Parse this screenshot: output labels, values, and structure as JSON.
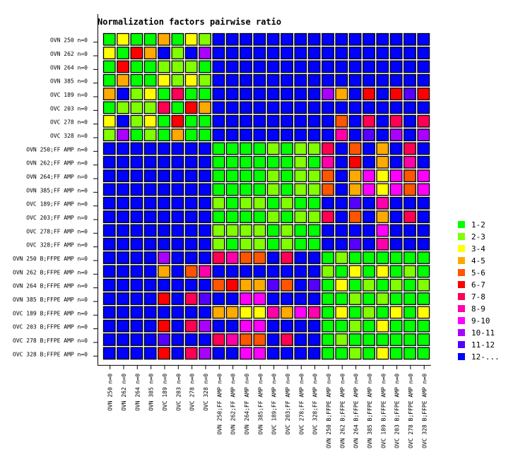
{
  "chart_data": {
    "type": "heatmap",
    "title": "Normalization factors pairwise ratio",
    "labels": [
      "OVN 250 n=0",
      "OVN 262 n=0",
      "OVN 264 n=0",
      "OVN 385 n=0",
      "OVC 189 n=0",
      "OVC 203 n=0",
      "OVC 278 n=0",
      "OVC 328 n=0",
      "OVN 250;FF AMP n=0",
      "OVN 262;FF AMP n=0",
      "OVN 264;FF AMP n=0",
      "OVN 385;FF AMP n=0",
      "OVC 189;FF AMP n=0",
      "OVC 203;FF AMP n=0",
      "OVC 278;FF AMP n=0",
      "OVC 328;FF AMP n=0",
      "OVN 250 B;FFPE AMP n=0",
      "OVN 262 B;FFPE AMP n=0",
      "OVN 264 B;FFPE AMP n=0",
      "OVN 385 B;FFPE AMP n=0",
      "OVC 189 B;FFPE AMP n=0",
      "OVC 203 B;FFPE AMP n=0",
      "OVC 278 B;FFPE AMP n=0",
      "OVC 328 B;FFPE AMP n=0"
    ],
    "legend": {
      "placement": "right",
      "bins": [
        {
          "label": "1-2",
          "color": "#00ff00"
        },
        {
          "label": "2-3",
          "color": "#80ff00"
        },
        {
          "label": "3-4",
          "color": "#ffff00"
        },
        {
          "label": "4-5",
          "color": "#ffaa00"
        },
        {
          "label": "5-6",
          "color": "#ff5500"
        },
        {
          "label": "6-7",
          "color": "#ff0000"
        },
        {
          "label": "7-8",
          "color": "#ff0055"
        },
        {
          "label": "8-9",
          "color": "#ff00aa"
        },
        {
          "label": "9-10",
          "color": "#ff00ff"
        },
        {
          "label": "10-11",
          "color": "#aa00ff"
        },
        {
          "label": "11-12",
          "color": "#5500ff"
        },
        {
          "label": "12-...",
          "color": "#0000ff"
        }
      ]
    },
    "bin_matrix": [
      [
        0,
        2,
        0,
        0,
        3,
        0,
        2,
        1,
        11,
        11,
        11,
        11,
        11,
        11,
        11,
        11,
        11,
        11,
        11,
        11,
        11,
        11,
        11,
        11
      ],
      [
        2,
        0,
        5,
        3,
        11,
        1,
        11,
        9,
        11,
        11,
        11,
        11,
        11,
        11,
        11,
        11,
        11,
        11,
        11,
        11,
        11,
        11,
        11,
        11
      ],
      [
        0,
        5,
        0,
        0,
        1,
        1,
        1,
        0,
        11,
        11,
        11,
        11,
        11,
        11,
        11,
        11,
        11,
        11,
        11,
        11,
        11,
        11,
        11,
        11
      ],
      [
        0,
        3,
        0,
        0,
        2,
        1,
        2,
        1,
        11,
        11,
        11,
        11,
        11,
        11,
        11,
        11,
        11,
        11,
        11,
        11,
        11,
        11,
        11,
        11
      ],
      [
        3,
        11,
        1,
        2,
        0,
        6,
        0,
        0,
        11,
        11,
        11,
        11,
        11,
        11,
        11,
        11,
        9,
        3,
        11,
        5,
        11,
        5,
        10,
        5
      ],
      [
        0,
        1,
        1,
        1,
        6,
        0,
        5,
        3,
        11,
        11,
        11,
        11,
        11,
        11,
        11,
        11,
        11,
        11,
        11,
        11,
        11,
        11,
        11,
        11
      ],
      [
        2,
        11,
        1,
        2,
        0,
        5,
        0,
        0,
        11,
        11,
        11,
        11,
        11,
        11,
        11,
        11,
        11,
        4,
        11,
        6,
        11,
        6,
        11,
        6
      ],
      [
        1,
        9,
        0,
        1,
        0,
        3,
        0,
        0,
        11,
        11,
        11,
        11,
        11,
        11,
        11,
        11,
        11,
        7,
        11,
        10,
        11,
        9,
        11,
        9
      ],
      [
        11,
        11,
        11,
        11,
        11,
        11,
        11,
        11,
        0,
        0,
        0,
        0,
        1,
        0,
        1,
        1,
        6,
        11,
        4,
        11,
        3,
        11,
        6,
        11
      ],
      [
        11,
        11,
        11,
        11,
        11,
        11,
        11,
        11,
        0,
        0,
        0,
        0,
        0,
        0,
        1,
        0,
        7,
        11,
        5,
        11,
        3,
        11,
        7,
        11
      ],
      [
        11,
        11,
        11,
        11,
        11,
        11,
        11,
        11,
        0,
        0,
        0,
        0,
        1,
        0,
        1,
        1,
        4,
        11,
        3,
        8,
        2,
        8,
        4,
        8
      ],
      [
        11,
        11,
        11,
        11,
        11,
        11,
        11,
        11,
        0,
        0,
        0,
        0,
        1,
        0,
        1,
        1,
        4,
        11,
        3,
        8,
        2,
        8,
        4,
        8
      ],
      [
        11,
        11,
        11,
        11,
        11,
        11,
        11,
        11,
        1,
        0,
        1,
        1,
        0,
        1,
        0,
        0,
        11,
        11,
        10,
        11,
        7,
        11,
        11,
        11
      ],
      [
        11,
        11,
        11,
        11,
        11,
        11,
        11,
        11,
        0,
        0,
        0,
        0,
        1,
        0,
        1,
        1,
        6,
        11,
        4,
        11,
        3,
        11,
        6,
        11
      ],
      [
        11,
        11,
        11,
        11,
        11,
        11,
        11,
        11,
        1,
        1,
        1,
        1,
        0,
        1,
        0,
        0,
        11,
        11,
        11,
        11,
        8,
        11,
        11,
        11
      ],
      [
        11,
        11,
        11,
        11,
        11,
        11,
        11,
        11,
        1,
        0,
        1,
        1,
        0,
        1,
        0,
        0,
        11,
        11,
        10,
        11,
        7,
        11,
        11,
        11
      ],
      [
        11,
        11,
        11,
        11,
        9,
        11,
        11,
        11,
        6,
        7,
        4,
        4,
        11,
        6,
        11,
        11,
        0,
        1,
        0,
        0,
        0,
        0,
        0,
        0
      ],
      [
        11,
        11,
        11,
        11,
        3,
        11,
        4,
        7,
        11,
        11,
        11,
        11,
        11,
        11,
        11,
        11,
        1,
        0,
        2,
        0,
        2,
        0,
        1,
        0
      ],
      [
        11,
        11,
        11,
        11,
        11,
        11,
        11,
        11,
        4,
        5,
        3,
        3,
        10,
        4,
        11,
        10,
        0,
        2,
        0,
        1,
        0,
        1,
        0,
        1
      ],
      [
        11,
        11,
        11,
        11,
        5,
        11,
        6,
        10,
        11,
        11,
        8,
        8,
        11,
        11,
        11,
        11,
        0,
        0,
        1,
        0,
        1,
        0,
        0,
        0
      ],
      [
        11,
        11,
        11,
        11,
        11,
        11,
        11,
        11,
        3,
        3,
        2,
        2,
        7,
        3,
        8,
        7,
        0,
        2,
        0,
        1,
        0,
        2,
        0,
        2
      ],
      [
        11,
        11,
        11,
        11,
        5,
        11,
        6,
        9,
        11,
        11,
        8,
        8,
        11,
        11,
        11,
        11,
        0,
        0,
        1,
        0,
        2,
        0,
        0,
        0
      ],
      [
        11,
        11,
        11,
        11,
        10,
        11,
        11,
        11,
        6,
        7,
        4,
        4,
        11,
        6,
        11,
        11,
        0,
        1,
        0,
        0,
        0,
        0,
        0,
        0
      ],
      [
        11,
        11,
        11,
        11,
        5,
        11,
        6,
        9,
        11,
        11,
        8,
        8,
        11,
        11,
        11,
        11,
        0,
        0,
        1,
        0,
        2,
        0,
        0,
        0
      ]
    ]
  }
}
